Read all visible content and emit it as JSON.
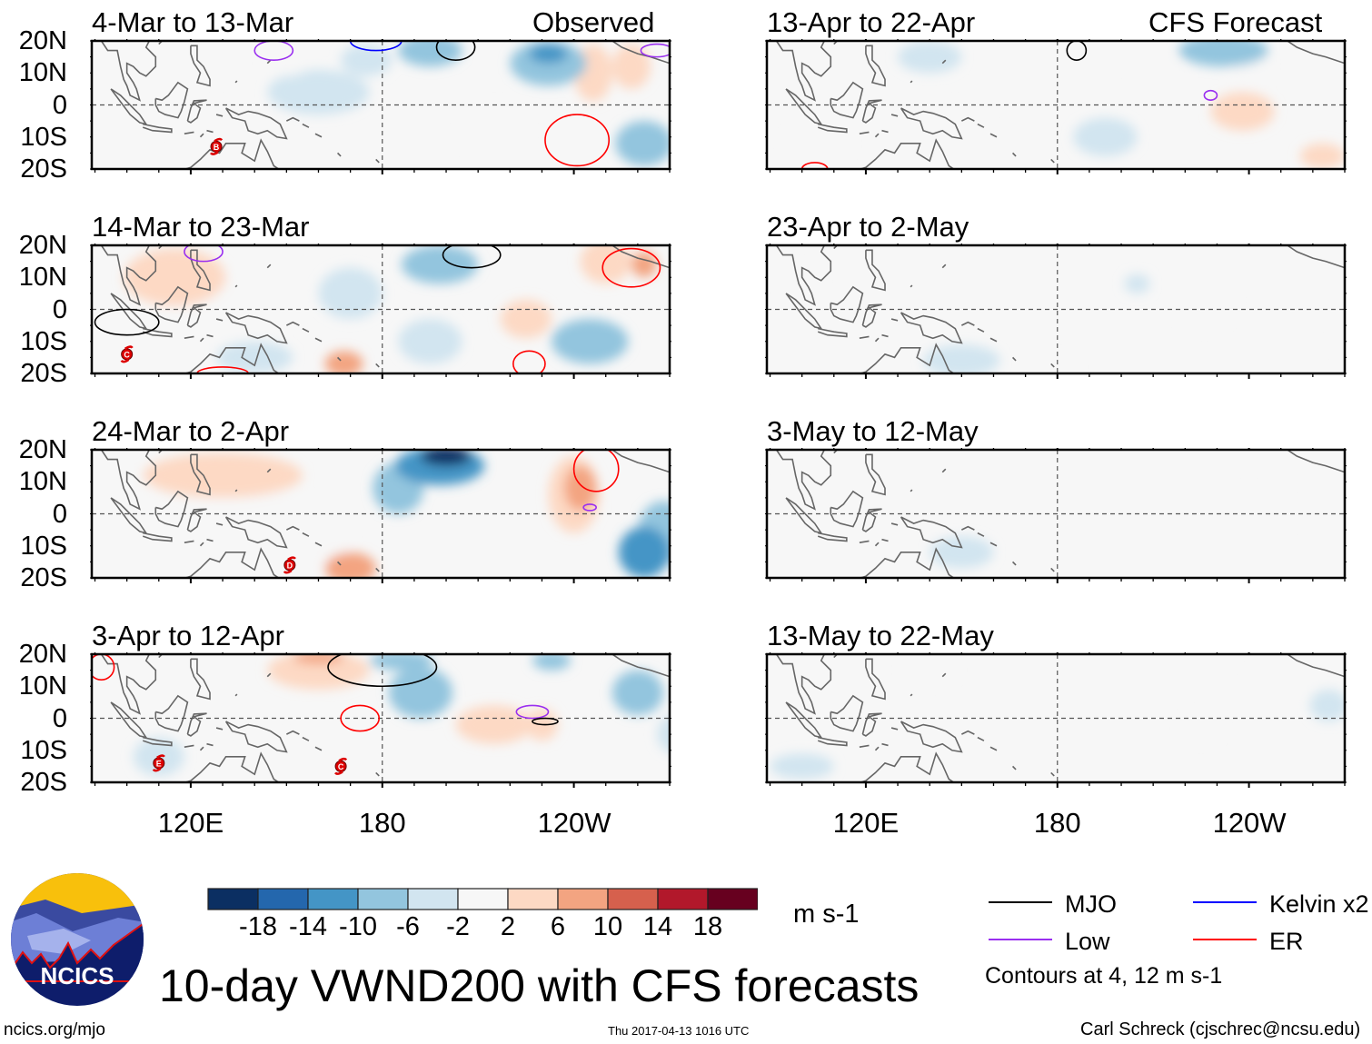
{
  "title": "10-day VWND200 with CFS forecasts",
  "units": "m s-1",
  "headers": {
    "observed": "Observed",
    "forecast": "CFS Forecast"
  },
  "lat_labels": [
    "20N",
    "10N",
    "0",
    "10S",
    "20S"
  ],
  "lon_labels": [
    "120E",
    "180",
    "120W"
  ],
  "colorbar": {
    "labels": [
      "-18",
      "-14",
      "-10",
      "-6",
      "-2",
      "2",
      "6",
      "10",
      "14",
      "18"
    ],
    "colors": [
      "#0b2f62",
      "#2467ad",
      "#4495c6",
      "#93c5de",
      "#d2e5f0",
      "#f7f7f7",
      "#fdd9c4",
      "#f3a481",
      "#d6604d",
      "#b2182b",
      "#67001f"
    ]
  },
  "legend": {
    "items": [
      {
        "label": "MJO",
        "color": "#000000"
      },
      {
        "label": "Kelvin x2",
        "color": "#0000ff"
      },
      {
        "label": "Low",
        "color": "#9a2ff0"
      },
      {
        "label": "ER",
        "color": "#ff0000"
      }
    ],
    "note": "Contours at 4, 12 m s-1"
  },
  "logo": {
    "text": "NCICS"
  },
  "footer": {
    "url": "ncics.org/mjo",
    "timestamp": "Thu 2017-04-13 1016 UTC",
    "credit": "Carl Schreck (cjschrec@ncsu.edu)"
  },
  "chart_data": [
    {
      "type": "heatmap",
      "title": "4-Mar to 13-Mar",
      "column": "Observed",
      "lon_range": [
        89,
        270
      ],
      "lat_range": [
        -20,
        20
      ],
      "anomalies": [
        [
          195,
          17,
          10,
          5,
          -6
        ],
        [
          175,
          14,
          8,
          5,
          -4
        ],
        [
          232,
          13,
          12,
          7,
          -8
        ],
        [
          232,
          16,
          6,
          3,
          -12
        ],
        [
          246,
          10,
          6,
          9,
          6
        ],
        [
          258,
          12,
          6,
          7,
          6
        ],
        [
          262,
          -12,
          9,
          7,
          -8
        ],
        [
          215,
          -8,
          10,
          8,
          2
        ],
        [
          160,
          4,
          16,
          7,
          -2
        ],
        [
          128,
          -6,
          14,
          6,
          2
        ],
        [
          100,
          -15,
          8,
          5,
          2
        ],
        [
          150,
          13,
          7,
          4,
          2
        ]
      ],
      "contours": [
        [
          "ER",
          241,
          -11,
          10,
          8
        ],
        [
          "Kelvin x2",
          178,
          20,
          8,
          3
        ],
        [
          "MJO",
          203,
          18,
          6,
          4
        ],
        [
          "Low",
          146,
          17,
          6,
          3
        ],
        [
          "Low",
          266,
          17,
          5,
          2
        ]
      ],
      "cyclones": [
        {
          "label": "B",
          "lon": 128,
          "lat": -13
        }
      ]
    },
    {
      "type": "heatmap",
      "title": "14-Mar to 23-Mar",
      "column": "Observed",
      "lon_range": [
        89,
        270
      ],
      "lat_range": [
        -20,
        20
      ],
      "anomalies": [
        [
          115,
          10,
          16,
          9,
          6
        ],
        [
          130,
          2,
          25,
          10,
          2
        ],
        [
          198,
          14,
          12,
          6,
          -6
        ],
        [
          170,
          5,
          10,
          8,
          -2
        ],
        [
          225,
          -3,
          8,
          6,
          6
        ],
        [
          250,
          15,
          8,
          7,
          6
        ],
        [
          262,
          14,
          4,
          4,
          10
        ],
        [
          245,
          -10,
          12,
          7,
          -6
        ],
        [
          168,
          -17,
          6,
          4,
          10
        ],
        [
          195,
          -10,
          10,
          7,
          -2
        ],
        [
          140,
          -15,
          12,
          5,
          -2
        ]
      ],
      "contours": [
        [
          "MJO",
          100,
          -4,
          10,
          4
        ],
        [
          "MJO",
          208,
          17,
          9,
          4
        ],
        [
          "ER",
          258,
          13,
          9,
          6
        ],
        [
          "ER",
          226,
          -17,
          5,
          4
        ],
        [
          "Low",
          124,
          18,
          6,
          3
        ],
        [
          "ER",
          130,
          -20,
          8,
          2
        ]
      ],
      "cyclones": [
        {
          "label": "C",
          "lon": 100,
          "lat": -14
        }
      ]
    },
    {
      "type": "heatmap",
      "title": "24-Mar to 2-Apr",
      "column": "Observed",
      "lon_range": [
        89,
        270
      ],
      "lat_range": [
        -20,
        20
      ],
      "anomalies": [
        [
          130,
          12,
          25,
          7,
          6
        ],
        [
          140,
          0,
          20,
          8,
          2
        ],
        [
          198,
          15,
          14,
          6,
          -10
        ],
        [
          200,
          18,
          8,
          3,
          -18
        ],
        [
          185,
          8,
          8,
          8,
          -6
        ],
        [
          240,
          6,
          8,
          12,
          6
        ],
        [
          242,
          8,
          5,
          7,
          10
        ],
        [
          262,
          -12,
          8,
          8,
          -10
        ],
        [
          268,
          -6,
          8,
          10,
          -6
        ],
        [
          170,
          -17,
          8,
          5,
          10
        ],
        [
          160,
          -8,
          10,
          8,
          2
        ],
        [
          100,
          5,
          8,
          8,
          2
        ]
      ],
      "contours": [
        [
          "ER",
          247,
          14,
          7,
          7
        ],
        [
          "Low",
          245,
          2,
          2,
          1
        ]
      ],
      "cyclones": [
        {
          "label": "D",
          "lon": 151,
          "lat": -16
        }
      ]
    },
    {
      "type": "heatmap",
      "title": "3-Apr to 12-Apr",
      "column": "Observed",
      "lon_range": [
        89,
        270
      ],
      "lat_range": [
        -20,
        20
      ],
      "anomalies": [
        [
          160,
          15,
          16,
          6,
          6
        ],
        [
          160,
          19,
          8,
          2,
          10
        ],
        [
          215,
          -2,
          12,
          6,
          6
        ],
        [
          230,
          -2,
          5,
          5,
          6
        ],
        [
          192,
          8,
          10,
          8,
          -6
        ],
        [
          186,
          18,
          10,
          3,
          -6
        ],
        [
          260,
          8,
          8,
          7,
          -6
        ],
        [
          233,
          18,
          6,
          3,
          -6
        ],
        [
          272,
          -5,
          6,
          6,
          -2
        ],
        [
          150,
          -12,
          14,
          6,
          2
        ],
        [
          110,
          -12,
          8,
          6,
          -2
        ]
      ],
      "contours": [
        [
          "MJO",
          180,
          16,
          17,
          6
        ],
        [
          "ER",
          173,
          0,
          6,
          4
        ],
        [
          "Low",
          227,
          2,
          5,
          2
        ],
        [
          "MJO",
          231,
          -1,
          4,
          1
        ],
        [
          "ER",
          92,
          16,
          4,
          4
        ]
      ],
      "cyclones": [
        {
          "label": "E",
          "lon": 110,
          "lat": -14
        },
        {
          "label": "C",
          "lon": 167,
          "lat": -15
        }
      ]
    },
    {
      "type": "heatmap",
      "title": "13-Apr to 22-Apr",
      "column": "CFS Forecast",
      "lon_range": [
        89,
        270
      ],
      "lat_range": [
        -20,
        20
      ],
      "anomalies": [
        [
          232,
          17,
          14,
          5,
          -6
        ],
        [
          212,
          10,
          8,
          5,
          2
        ],
        [
          238,
          -2,
          10,
          6,
          6
        ],
        [
          240,
          12,
          6,
          6,
          2
        ],
        [
          148,
          -6,
          10,
          6,
          2
        ],
        [
          263,
          -16,
          7,
          4,
          6
        ],
        [
          140,
          15,
          10,
          5,
          -2
        ],
        [
          195,
          -10,
          10,
          6,
          -2
        ],
        [
          105,
          -12,
          10,
          5,
          2
        ]
      ],
      "contours": [
        [
          "Low",
          228,
          3,
          2,
          1.5
        ],
        [
          "MJO",
          186,
          17,
          3,
          3
        ],
        [
          "ER",
          104,
          -20,
          4,
          2
        ]
      ],
      "cyclones": []
    },
    {
      "type": "heatmap",
      "title": "23-Apr to 2-May",
      "column": "CFS Forecast",
      "lon_range": [
        89,
        270
      ],
      "lat_range": [
        -20,
        20
      ],
      "anomalies": [
        [
          226,
          3,
          9,
          9,
          2
        ],
        [
          100,
          5,
          6,
          8,
          2
        ],
        [
          150,
          -16,
          12,
          5,
          -2
        ],
        [
          181,
          -18,
          5,
          3,
          2
        ],
        [
          265,
          -15,
          4,
          4,
          2
        ],
        [
          205,
          8,
          4,
          3,
          -2
        ]
      ],
      "contours": [],
      "cyclones": []
    },
    {
      "type": "heatmap",
      "title": "3-May to 12-May",
      "column": "CFS Forecast",
      "lon_range": [
        89,
        270
      ],
      "lat_range": [
        -20,
        20
      ],
      "anomalies": [
        [
          240,
          0,
          14,
          7,
          2
        ],
        [
          100,
          10,
          6,
          6,
          2
        ],
        [
          150,
          -12,
          10,
          5,
          -2
        ]
      ],
      "contours": [],
      "cyclones": []
    },
    {
      "type": "heatmap",
      "title": "13-May to 22-May",
      "column": "CFS Forecast",
      "lon_range": [
        89,
        270
      ],
      "lat_range": [
        -20,
        20
      ],
      "anomalies": [
        [
          250,
          12,
          10,
          5,
          2
        ],
        [
          225,
          -3,
          6,
          4,
          2
        ],
        [
          265,
          4,
          6,
          5,
          -2
        ],
        [
          100,
          -15,
          10,
          4,
          -2
        ],
        [
          140,
          15,
          8,
          4,
          2
        ]
      ],
      "contours": [],
      "cyclones": []
    }
  ]
}
